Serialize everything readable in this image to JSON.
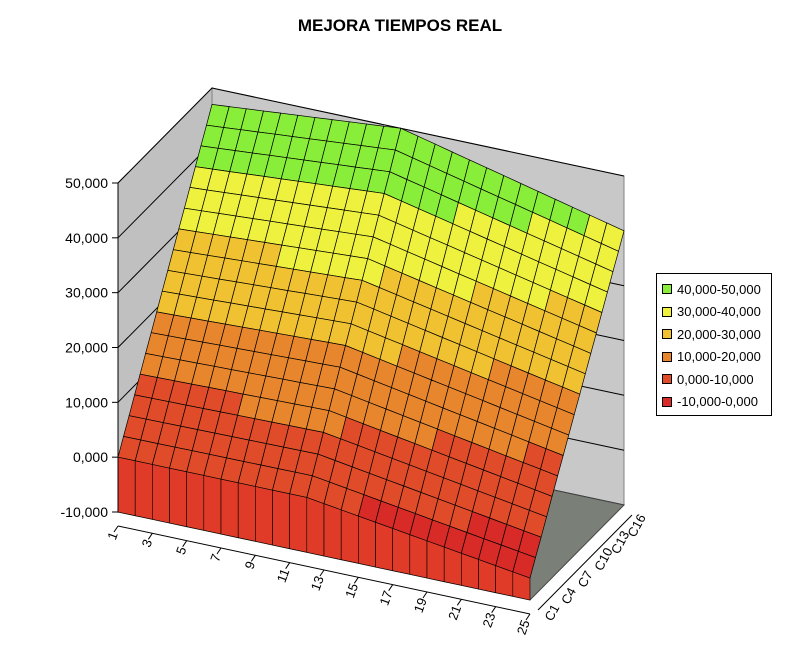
{
  "chart_data": {
    "type": "surface",
    "title": "MEJORA TIEMPOS REAL",
    "zlim": [
      -10000,
      50000
    ],
    "z_ticks": [
      "-10,000",
      "0,000",
      "10,000",
      "20,000",
      "30,000",
      "40,000",
      "50,000"
    ],
    "x_ticks": [
      "1",
      "3",
      "5",
      "7",
      "9",
      "11",
      "13",
      "15",
      "17",
      "19",
      "21",
      "23",
      "25"
    ],
    "y_ticks": [
      "C1",
      "C4",
      "C7",
      "C10",
      "C13",
      "C16"
    ],
    "legend": [
      {
        "label": "40,000-50,000",
        "color": "#88ee3a"
      },
      {
        "label": "30,000-40,000",
        "color": "#eef23e"
      },
      {
        "label": "20,000-30,000",
        "color": "#f0c232"
      },
      {
        "label": "10,000-20,000",
        "color": "#e8862e"
      },
      {
        "label": "0,000-10,000",
        "color": "#e04c2a"
      },
      {
        "label": "-10,000-0,000",
        "color": "#d82a26"
      }
    ],
    "surface_corners": {
      "x1_C1": 0,
      "x1_C18": 47000,
      "x12_C18": 50000,
      "x25_C18": 40000,
      "x25_C1": -6000
    }
  }
}
